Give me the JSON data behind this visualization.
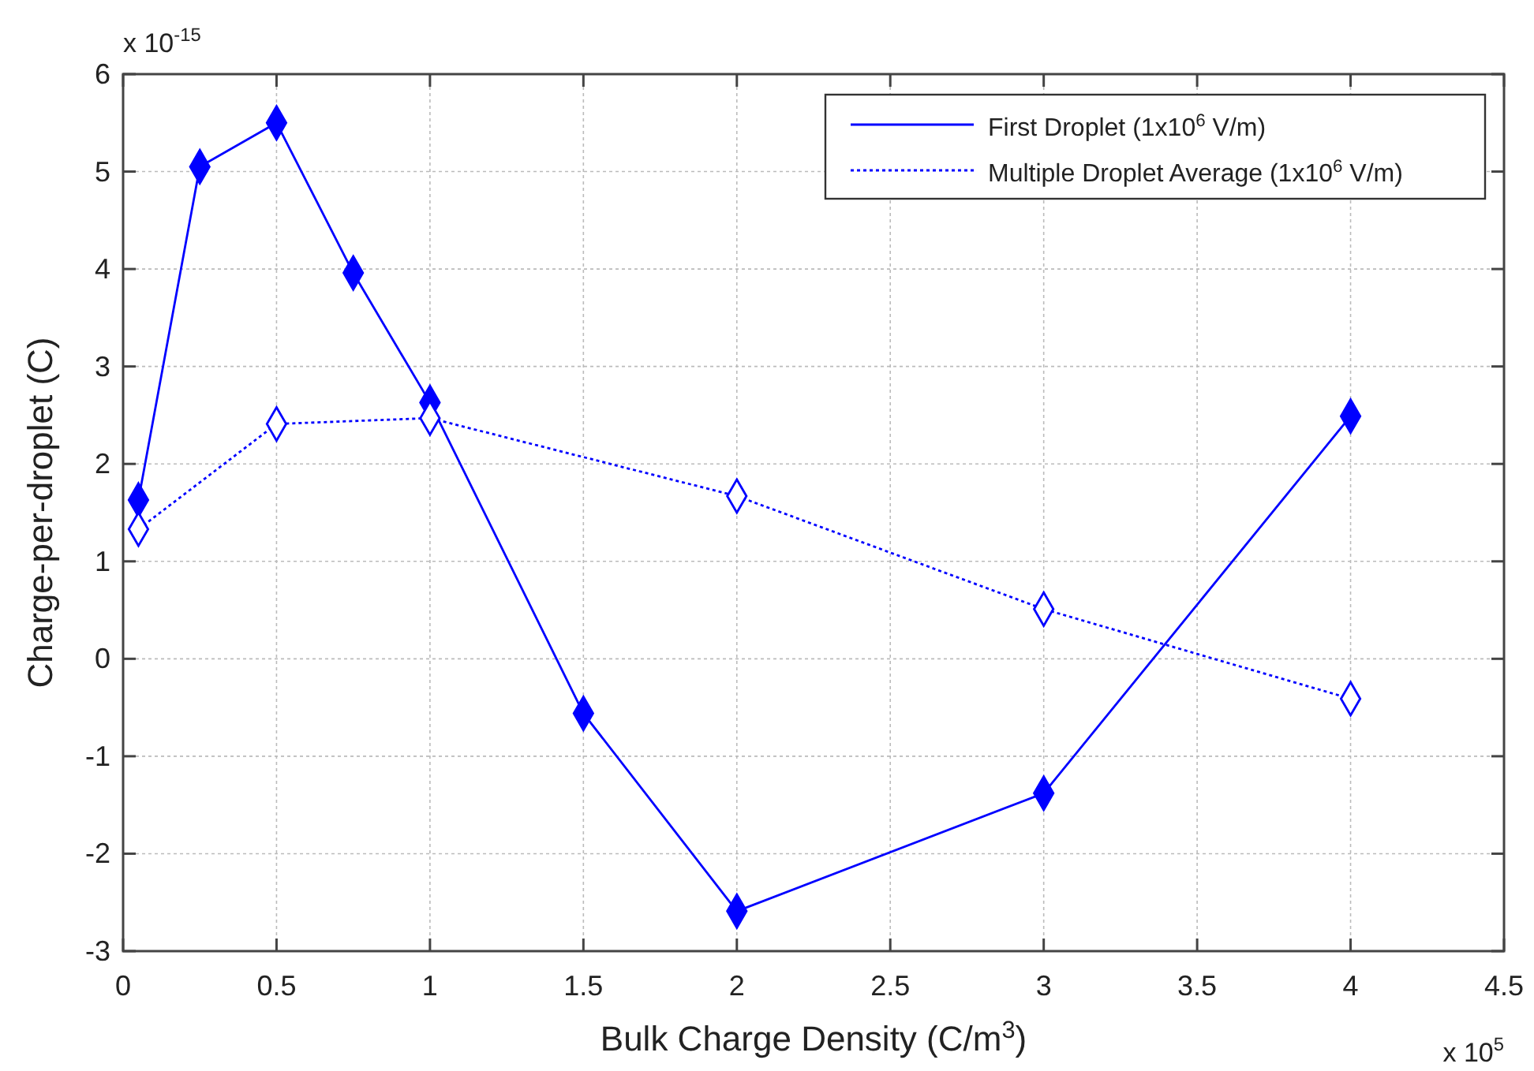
{
  "chart_data": {
    "type": "line",
    "xlabel": "Bulk Charge Density (C/m$^{3}$)",
    "ylabel": "Charge-per-droplet (C)",
    "annotations": [
      "x 10$^{-15}$",
      "x 10$^{5}$"
    ],
    "xlim": [
      0,
      4.5
    ],
    "xticks": [
      0,
      0.5,
      1,
      1.5,
      2,
      2.5,
      3,
      3.5,
      4,
      4.5
    ],
    "ylim": [
      -3,
      6
    ],
    "yticks": [
      -3,
      -2,
      -1,
      0,
      1,
      2,
      3,
      4,
      5,
      6
    ],
    "grid": true,
    "legend": "top right",
    "marker": "diamond",
    "series": [
      {
        "name": "First Droplet (1x10$^{6}$ V/m)",
        "color": "#0000ff",
        "line_style": "solid",
        "x": [
          0.05,
          0.25,
          0.5,
          0.75,
          1,
          1.5,
          2,
          3,
          4
        ],
        "values": [
          1.63,
          5.05,
          5.5,
          3.96,
          2.63,
          -0.56,
          -2.59,
          -1.38,
          2.49
        ]
      },
      {
        "name": "Multiple Droplet Average (1x10$^{6}$ V/m)",
        "color": "#0000ff",
        "line_style": "dotted",
        "x": [
          0.05,
          0.5,
          1,
          2,
          3,
          4
        ],
        "values": [
          1.33,
          2.41,
          2.47,
          1.67,
          0.51,
          -0.41
        ]
      }
    ]
  }
}
